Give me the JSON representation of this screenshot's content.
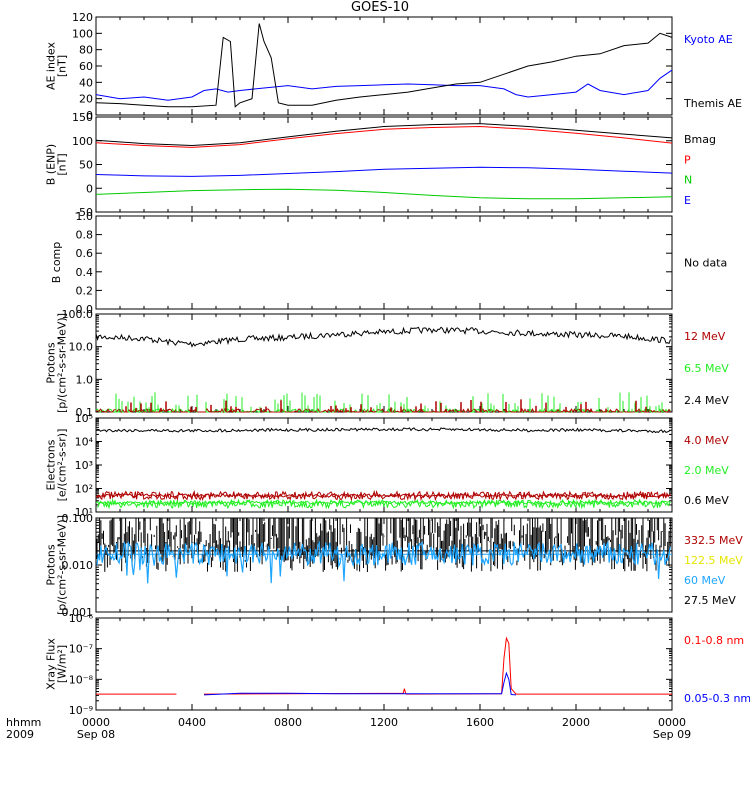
{
  "title": "GOES-10",
  "x_axis": {
    "ticks": [
      {
        "label": "0000",
        "sub": "Sep 08"
      },
      {
        "label": "0400",
        "sub": ""
      },
      {
        "label": "0800",
        "sub": ""
      },
      {
        "label": "1200",
        "sub": ""
      },
      {
        "label": "1600",
        "sub": ""
      },
      {
        "label": "2000",
        "sub": ""
      },
      {
        "label": "0000",
        "sub": "Sep 09"
      }
    ],
    "row_label_1": "hhmm",
    "row_label_2": "2009"
  },
  "colors": {
    "black": "#000000",
    "blue": "#0000ff",
    "red": "#ff0000",
    "green": "#00cc00",
    "darkred": "#b00000",
    "brightgreen": "#22ee22",
    "yellow": "#e6e600",
    "cyan": "#1ea5ff"
  },
  "chart_data": [
    {
      "type": "line",
      "ylabel": [
        "AE index",
        "[nT]"
      ],
      "ylim": [
        0,
        120
      ],
      "yticks": [
        0,
        20,
        40,
        60,
        80,
        100,
        120
      ],
      "ytick_labels": [
        "0",
        "20",
        "40",
        "60",
        "80",
        "100",
        "120"
      ],
      "scale": "linear",
      "legend": [
        {
          "text": "Kyoto AE",
          "color": "#0000ff"
        },
        {
          "text": "Themis AE",
          "color": "#000000"
        }
      ],
      "series": [
        {
          "name": "Kyoto AE",
          "color": "#0000ff",
          "x": [
            0,
            1,
            2,
            3,
            4,
            4.5,
            5,
            5.5,
            6,
            7,
            8,
            9,
            10,
            11,
            12,
            13,
            14,
            15,
            16,
            17,
            17.5,
            18,
            19,
            20,
            20.5,
            21,
            22,
            23,
            23.5,
            24
          ],
          "y": [
            25,
            20,
            22,
            18,
            22,
            30,
            32,
            28,
            30,
            33,
            36,
            32,
            35,
            36,
            37,
            38,
            37,
            36,
            36,
            32,
            25,
            22,
            25,
            28,
            38,
            30,
            25,
            30,
            45,
            55
          ]
        },
        {
          "name": "Themis AE",
          "color": "#000000",
          "x": [
            0,
            1,
            2,
            3,
            4,
            5,
            5.3,
            5.6,
            5.8,
            6,
            6.5,
            6.8,
            7,
            7.3,
            7.6,
            8,
            9,
            10,
            11,
            12,
            13,
            14,
            15,
            16,
            17,
            18,
            19,
            20,
            21,
            22,
            23,
            23.5,
            24
          ],
          "y": [
            15,
            14,
            12,
            10,
            10,
            12,
            95,
            90,
            10,
            15,
            20,
            112,
            90,
            70,
            15,
            12,
            12,
            18,
            22,
            25,
            28,
            33,
            38,
            40,
            50,
            60,
            65,
            72,
            75,
            85,
            88,
            100,
            95
          ]
        }
      ]
    },
    {
      "type": "line",
      "ylabel": [
        "B (ENP)",
        "[nT]"
      ],
      "ylim": [
        -50,
        150
      ],
      "yticks": [
        -50,
        0,
        50,
        100,
        150
      ],
      "ytick_labels": [
        "-50",
        "0",
        "50",
        "100",
        "150"
      ],
      "scale": "linear",
      "legend": [
        {
          "text": "Bmag",
          "color": "#000000"
        },
        {
          "text": "P",
          "color": "#ff0000"
        },
        {
          "text": "N",
          "color": "#00cc00"
        },
        {
          "text": "E",
          "color": "#0000ff"
        }
      ],
      "series": [
        {
          "name": "Bmag",
          "color": "#000000",
          "x": [
            0,
            2,
            4,
            6,
            8,
            10,
            12,
            14,
            16,
            18,
            20,
            22,
            24
          ],
          "y": [
            101,
            94,
            90,
            96,
            108,
            120,
            130,
            134,
            136,
            130,
            122,
            114,
            106
          ]
        },
        {
          "name": "P",
          "color": "#ff0000",
          "x": [
            0,
            2,
            4,
            6,
            8,
            10,
            12,
            14,
            16,
            18,
            20,
            22,
            24
          ],
          "y": [
            96,
            90,
            86,
            92,
            104,
            115,
            124,
            128,
            130,
            124,
            116,
            106,
            95
          ]
        },
        {
          "name": "N",
          "color": "#00cc00",
          "x": [
            0,
            2,
            4,
            6,
            8,
            10,
            12,
            14,
            16,
            18,
            20,
            22,
            24
          ],
          "y": [
            -13,
            -9,
            -5,
            -3,
            -2,
            -4,
            -9,
            -15,
            -20,
            -22,
            -22,
            -20,
            -18
          ]
        },
        {
          "name": "E",
          "color": "#0000ff",
          "x": [
            0,
            2,
            4,
            6,
            8,
            10,
            12,
            14,
            16,
            18,
            20,
            22,
            24
          ],
          "y": [
            29,
            26,
            25,
            27,
            31,
            35,
            40,
            42,
            44,
            43,
            40,
            36,
            32
          ]
        }
      ]
    },
    {
      "type": "line",
      "ylabel": [
        "B comp",
        ""
      ],
      "ylim": [
        0,
        1
      ],
      "yticks": [
        0,
        0.2,
        0.4,
        0.6,
        0.8,
        1.0
      ],
      "ytick_labels": [
        "0.0",
        "0.2",
        "0.4",
        "0.6",
        "0.8",
        "1.0"
      ],
      "scale": "linear",
      "legend": [
        {
          "text": "No data",
          "color": "#000000"
        }
      ],
      "series": []
    },
    {
      "type": "line",
      "ylabel": [
        "Protons",
        "[p/(cm²-s-sr-MeV)]"
      ],
      "ylim": [
        0.1,
        100
      ],
      "yticks": [
        0.1,
        1,
        10,
        100
      ],
      "ytick_labels": [
        "0.1",
        "1.0",
        "10.0",
        "100.0"
      ],
      "scale": "log",
      "legend": [
        {
          "text": "12 MeV",
          "color": "#b00000"
        },
        {
          "text": "6.5 MeV",
          "color": "#22ee22"
        },
        {
          "text": "2.4 MeV",
          "color": "#000000"
        }
      ],
      "series": [
        {
          "name": "2.4 MeV",
          "color": "#000000",
          "x": [
            0,
            2,
            3,
            4,
            6,
            8,
            10,
            12,
            14,
            16,
            18,
            20,
            22,
            24
          ],
          "y": [
            20,
            18,
            14,
            12,
            17,
            19,
            24,
            28,
            33,
            30,
            26,
            23,
            21,
            15
          ]
        },
        {
          "name": "6.5 MeV",
          "color": "#22ee22",
          "x": [
            0,
            24
          ],
          "y": [
            0.1,
            0.1
          ]
        },
        {
          "name": "12 MeV",
          "color": "#b00000",
          "x": [
            0,
            24
          ],
          "y": [
            0.1,
            0.1
          ]
        }
      ]
    },
    {
      "type": "line",
      "ylabel": [
        "Electrons",
        "[e/(cm²-s-sr)]"
      ],
      "ylim": [
        10,
        100000
      ],
      "yticks": [
        10,
        100,
        1000,
        10000,
        100000
      ],
      "ytick_labels": [
        "10¹",
        "10²",
        "10³",
        "10⁴",
        "10⁵"
      ],
      "scale": "log",
      "legend": [
        {
          "text": "4.0 MeV",
          "color": "#b00000"
        },
        {
          "text": "2.0 MeV",
          "color": "#22ee22"
        },
        {
          "text": "0.6 MeV",
          "color": "#000000"
        }
      ],
      "series": [
        {
          "name": "0.6 MeV",
          "color": "#000000",
          "x": [
            0,
            4,
            8,
            12,
            16,
            18,
            20,
            24
          ],
          "y": [
            30000,
            29000,
            31000,
            33000,
            32000,
            30000,
            31000,
            27000
          ]
        },
        {
          "name": "4.0 MeV",
          "color": "#b00000",
          "x": [
            0,
            24
          ],
          "y": [
            50,
            50
          ]
        },
        {
          "name": "2.0 MeV",
          "color": "#22ee22",
          "x": [
            0,
            24
          ],
          "y": [
            25,
            25
          ]
        }
      ]
    },
    {
      "type": "line",
      "ylabel": [
        "Protons",
        "[p/(cm²-s-sr-MeV)]"
      ],
      "ylim": [
        0.001,
        0.1
      ],
      "yticks": [
        0.001,
        0.01,
        0.1
      ],
      "ytick_labels": [
        "0.001",
        "0.010",
        "0.100"
      ],
      "scale": "log",
      "legend": [
        {
          "text": "332.5 MeV",
          "color": "#b00000"
        },
        {
          "text": "122.5 MeV",
          "color": "#e6e600"
        },
        {
          "text": "60 MeV",
          "color": "#1ea5ff"
        },
        {
          "text": "27.5 MeV",
          "color": "#000000"
        }
      ],
      "series": [
        {
          "name": "27.5 MeV",
          "color": "#000000",
          "x": [
            0,
            24
          ],
          "y": [
            0.02,
            0.02
          ]
        },
        {
          "name": "60 MeV",
          "color": "#1ea5ff",
          "x": [
            0,
            24
          ],
          "y": [
            0.017,
            0.017
          ]
        }
      ]
    },
    {
      "type": "line",
      "ylabel": [
        "Xray Flux",
        "[W/m²]"
      ],
      "ylim": [
        1e-09,
        1e-06
      ],
      "yticks": [
        1e-09,
        1e-08,
        1e-07,
        1e-06
      ],
      "ytick_labels": [
        "10⁻⁹",
        "10⁻⁸",
        "10⁻⁷",
        "10⁻⁶"
      ],
      "scale": "log",
      "legend": [
        {
          "text": "0.1-0.8 nm",
          "color": "#ff0000"
        },
        {
          "text": "0.05-0.3 nm",
          "color": "#0000ff"
        }
      ],
      "series": [
        {
          "name": "0.1-0.8 nm",
          "color": "#ff0000",
          "x": [
            0,
            3.35,
            null,
            4.5,
            12.8,
            12.85,
            12.9,
            12.95,
            13,
            16.9,
            17,
            17.1,
            17.2,
            17.3,
            17.5,
            24
          ],
          "y": [
            3.3e-09,
            3.3e-09,
            null,
            3.3e-09,
            3.5e-09,
            5e-09,
            3.5e-09,
            3.3e-09,
            3.3e-09,
            3.4e-09,
            5e-08,
            2.2e-07,
            1.5e-07,
            5e-09,
            3.3e-09,
            3.3e-09
          ]
        },
        {
          "name": "0.05-0.3 nm",
          "color": "#0000ff",
          "x": [
            4.5,
            6,
            8,
            10,
            12,
            14,
            16,
            16.9,
            17,
            17.1,
            17.2,
            17.3,
            17.5
          ],
          "y": [
            3.1e-09,
            3.5e-09,
            3.5e-09,
            3.4e-09,
            3.4e-09,
            3.4e-09,
            3.4e-09,
            3.4e-09,
            8e-09,
            1.6e-08,
            1e-08,
            3.2e-09,
            3.1e-09
          ]
        }
      ]
    }
  ]
}
